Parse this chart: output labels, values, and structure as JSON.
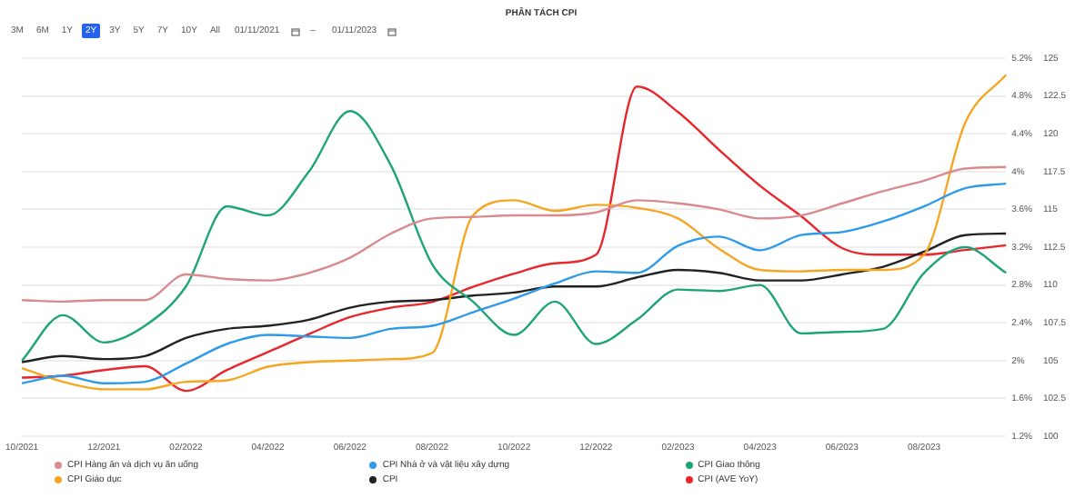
{
  "chart_data": {
    "type": "line",
    "title": "PHÂN TÁCH CPI",
    "annotations": [
      "3M",
      "6M",
      "1Y",
      "2Y",
      "3Y",
      "5Y",
      "7Y",
      "10Y",
      "All",
      "01/11/2021",
      "–",
      "01/11/2023"
    ],
    "categories": [
      "10/2021",
      null,
      "12/2021",
      null,
      "02/2022",
      null,
      "04/2022",
      null,
      "06/2022",
      null,
      "08/2022",
      null,
      "10/2022",
      null,
      "12/2022",
      null,
      "02/2023",
      null,
      "04/2023",
      null,
      "06/2023",
      null,
      "08/2023",
      null,
      null
    ],
    "series": [
      {
        "name": "CPI Hàng ăn và dịch vụ ăn uống",
        "color": "#d98a8f",
        "axis": "y2",
        "values": [
          109.0,
          108.9,
          109.0,
          109.0,
          110.7,
          110.4,
          110.3,
          110.8,
          111.8,
          113.4,
          114.4,
          114.5,
          114.6,
          114.6,
          114.8,
          115.6,
          115.4,
          115.0,
          114.4,
          114.6,
          115.4,
          116.2,
          116.9,
          117.7,
          117.8
        ]
      },
      {
        "name": "CPI Nhà ở và vật liệu xây dựng",
        "color": "#2f9be8",
        "axis": "y2",
        "values": [
          103.5,
          104.0,
          103.5,
          103.6,
          104.8,
          106.1,
          106.7,
          106.6,
          106.5,
          107.1,
          107.3,
          108.2,
          109.1,
          110.1,
          110.9,
          110.8,
          112.6,
          113.2,
          112.3,
          113.3,
          113.5,
          114.2,
          115.2,
          116.4,
          116.7
        ]
      },
      {
        "name": "CPI Giao thông",
        "color": "#1fa37a",
        "axis": "y2",
        "values": [
          105.0,
          108.0,
          106.2,
          107.3,
          109.9,
          115.2,
          114.6,
          117.5,
          121.5,
          117.9,
          111.4,
          108.9,
          106.7,
          108.9,
          106.1,
          107.7,
          109.7,
          109.6,
          110.0,
          106.8,
          106.9,
          107.1,
          110.8,
          112.5,
          110.8
        ]
      },
      {
        "name": "CPI Giáo dục",
        "color": "#f5a623",
        "axis": "y2",
        "values": [
          104.5,
          103.6,
          103.1,
          103.1,
          103.6,
          103.7,
          104.6,
          104.9,
          105.0,
          105.1,
          105.5,
          114.6,
          115.6,
          114.9,
          115.3,
          115.1,
          114.4,
          112.4,
          111.0,
          110.9,
          111.0,
          111.0,
          112.0,
          120.7,
          123.9
        ]
      },
      {
        "name": "CPI",
        "color": "#222222",
        "axis": "y2",
        "values": [
          104.9,
          105.3,
          105.1,
          105.3,
          106.5,
          107.1,
          107.3,
          107.7,
          108.5,
          108.9,
          109.0,
          109.3,
          109.5,
          109.9,
          109.9,
          110.5,
          111.0,
          110.8,
          110.3,
          110.3,
          110.7,
          111.2,
          112.2,
          113.3,
          113.4
        ]
      },
      {
        "name": "CPI (AVE YoY)",
        "color": "#e8262b",
        "axis": "y",
        "values": [
          1.82,
          1.84,
          1.9,
          1.94,
          1.68,
          1.9,
          2.09,
          2.28,
          2.46,
          2.56,
          2.62,
          2.78,
          2.92,
          3.03,
          3.12,
          4.9,
          4.63,
          4.23,
          3.85,
          3.53,
          3.19,
          3.12,
          3.12,
          3.17,
          3.22
        ]
      }
    ],
    "ylim": [
      1.2,
      5.2
    ],
    "yticks": [
      {
        "value": 1.2,
        "label": "1.2%"
      },
      {
        "value": 1.6,
        "label": "1.6%"
      },
      {
        "value": 2,
        "label": "2%"
      },
      {
        "value": 2.4,
        "label": "2.4%"
      },
      {
        "value": 2.8,
        "label": "2.8%"
      },
      {
        "value": 3.2,
        "label": "3.2%"
      },
      {
        "value": 3.6,
        "label": "3.6%"
      },
      {
        "value": 4,
        "label": "4%"
      },
      {
        "value": 4.4,
        "label": "4.4%"
      },
      {
        "value": 4.8,
        "label": "4.8%"
      },
      {
        "value": 5.2,
        "label": "5.2%"
      }
    ],
    "y2lim": [
      100,
      125
    ],
    "y2ticks": [
      100,
      102.5,
      105,
      107.5,
      110,
      112.5,
      115,
      117.5,
      120,
      122.5,
      125
    ],
    "grid": "y",
    "legend": "bottom",
    "marker": "none",
    "line_style": "solid"
  }
}
